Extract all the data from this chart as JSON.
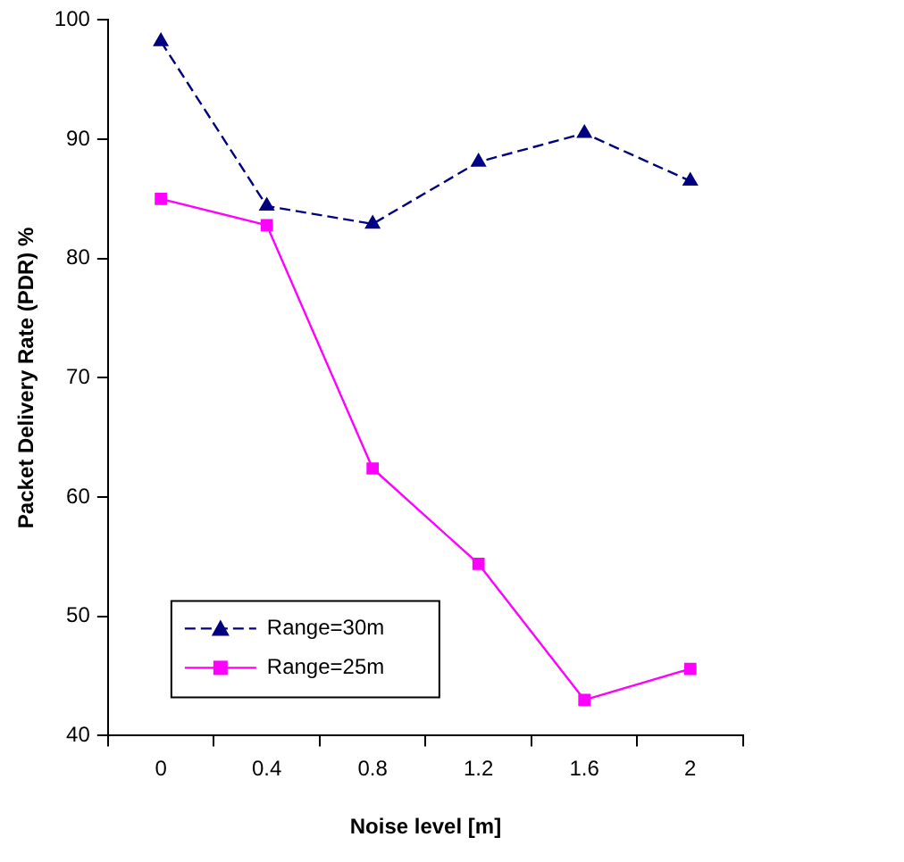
{
  "chart_data": {
    "type": "line",
    "xlabel": "Noise level [m]",
    "ylabel": "Packet Delivery Rate (PDR) %",
    "categories": [
      "0",
      "0.4",
      "0.8",
      "1.2",
      "1.6",
      "2"
    ],
    "series": [
      {
        "name": "Range=30m",
        "color": "#000080",
        "values": [
          98.2,
          84.4,
          82.9,
          88.1,
          90.5,
          86.5
        ],
        "marker": "triangle",
        "line_style": "dashed"
      },
      {
        "name": "Range=25m",
        "color": "#ff00ff",
        "values": [
          85.0,
          82.8,
          62.4,
          54.4,
          43.0,
          45.6
        ],
        "marker": "square",
        "line_style": "solid"
      }
    ],
    "ylim": [
      40,
      100
    ],
    "yticks": [
      40,
      50,
      60,
      70,
      80,
      90,
      100
    ],
    "grid": false,
    "legend": "bottom left"
  }
}
